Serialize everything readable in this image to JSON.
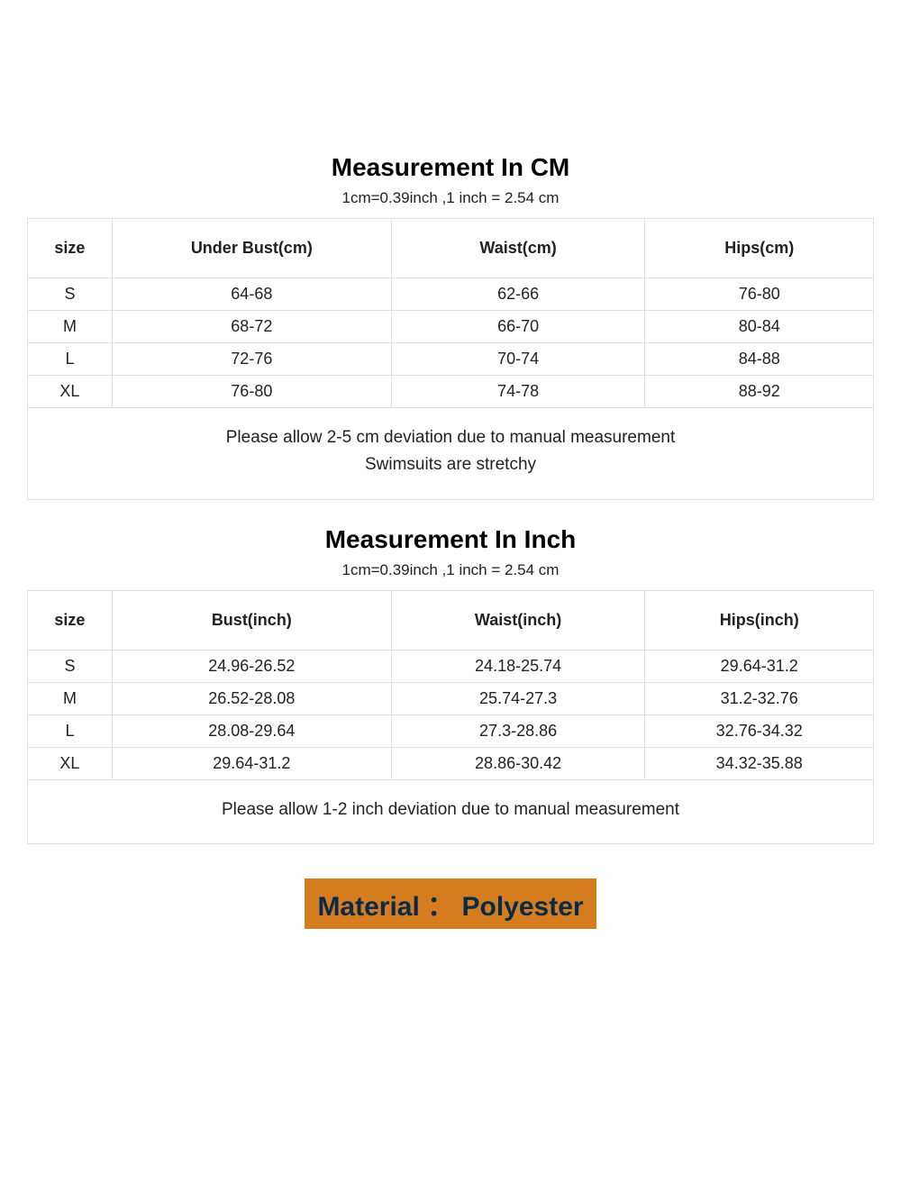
{
  "cm_section": {
    "title": "Measurement In CM",
    "conversion": "1cm=0.39inch ,1 inch = 2.54 cm",
    "columns": [
      "size",
      "Under Bust(cm)",
      "Waist(cm)",
      "Hips(cm)"
    ],
    "rows": [
      [
        "S",
        "64-68",
        "62-66",
        "76-80"
      ],
      [
        "M",
        "68-72",
        "66-70",
        "80-84"
      ],
      [
        "L",
        "72-76",
        "70-74",
        "84-88"
      ],
      [
        "XL",
        "76-80",
        "74-78",
        "88-92"
      ]
    ],
    "note_line1": "Please allow 2-5 cm deviation due to manual measurement",
    "note_line2": "Swimsuits are stretchy"
  },
  "inch_section": {
    "title": "Measurement In Inch",
    "conversion": "1cm=0.39inch ,1 inch = 2.54 cm",
    "columns": [
      "size",
      "Bust(inch)",
      "Waist(inch)",
      "Hips(inch)"
    ],
    "rows": [
      [
        "S",
        "24.96-26.52",
        "24.18-25.74",
        "29.64-31.2"
      ],
      [
        "M",
        "26.52-28.08",
        "25.74-27.3",
        "31.2-32.76"
      ],
      [
        "L",
        "28.08-29.64",
        "27.3-28.86",
        "32.76-34.32"
      ],
      [
        "XL",
        "29.64-31.2",
        "28.86-30.42",
        "34.32-35.88"
      ]
    ],
    "note_line1": "Please allow 1-2 inch deviation due to manual measurement"
  },
  "material_banner": "Material ： Polyester",
  "styling": {
    "background_color": "#ffffff",
    "border_color": "#e0e0e0",
    "text_color": "#222222",
    "title_color": "#000000",
    "banner_bg": "#d47c1e",
    "banner_text": "#0a2a4a",
    "title_fontsize": 28,
    "body_fontsize": 18,
    "note_fontsize": 19,
    "banner_fontsize": 30,
    "column_widths_pct": [
      10,
      33,
      30,
      27
    ]
  }
}
